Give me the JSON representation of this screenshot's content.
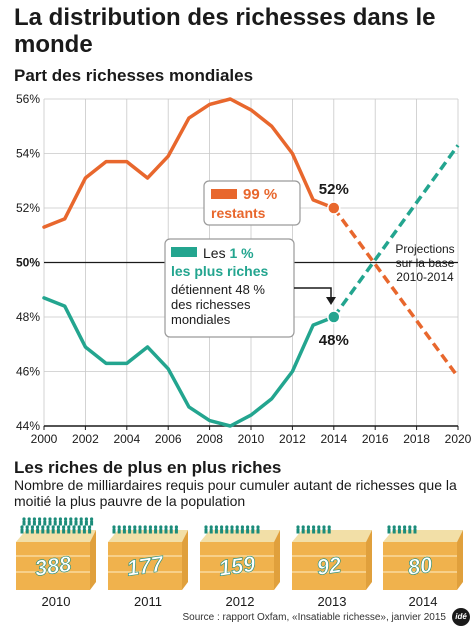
{
  "title": "La distribution des richesses dans le monde",
  "subtitle": "Part des richesses mondiales",
  "colors": {
    "orange": "#e8672d",
    "teal": "#23a58f",
    "axis": "#1a1a1a",
    "grid": "#c8c8c8",
    "cake_top": "#f2dfa7",
    "cake_side": "#f0b24d",
    "people": "#1c8c7a"
  },
  "chart_data": {
    "type": "line",
    "x_ticks": [
      2000,
      2002,
      2004,
      2006,
      2008,
      2010,
      2012,
      2014,
      2016,
      2018,
      2020
    ],
    "y_ticks": [
      "44%",
      "46%",
      "48%",
      "50%",
      "52%",
      "54%",
      "56%"
    ],
    "y_tick_values": [
      44,
      46,
      48,
      50,
      52,
      54,
      56
    ],
    "xlim": [
      2000,
      2020
    ],
    "ylim": [
      44,
      56
    ],
    "grid": true,
    "series": [
      {
        "key": "orange",
        "x": [
          2000,
          2001,
          2002,
          2003,
          2004,
          2005,
          2006,
          2007,
          2008,
          2009,
          2010,
          2011,
          2012,
          2013,
          2014
        ],
        "values": [
          51.3,
          51.6,
          53.1,
          53.7,
          53.7,
          53.1,
          53.9,
          55.3,
          55.8,
          56.0,
          55.6,
          55.0,
          54.0,
          52.3,
          52.0
        ],
        "projection": {
          "x": [
            2014,
            2020
          ],
          "values": [
            52.0,
            45.8
          ]
        }
      },
      {
        "key": "teal",
        "x": [
          2000,
          2001,
          2002,
          2003,
          2004,
          2005,
          2006,
          2007,
          2008,
          2009,
          2010,
          2011,
          2012,
          2013,
          2014
        ],
        "values": [
          48.7,
          48.4,
          46.9,
          46.3,
          46.3,
          46.9,
          46.1,
          44.7,
          44.2,
          44.0,
          44.4,
          45.0,
          46.0,
          47.7,
          48.0
        ],
        "projection": {
          "x": [
            2014,
            2020
          ],
          "values": [
            48.0,
            54.3
          ]
        }
      }
    ],
    "point_labels": [
      {
        "series": "orange",
        "x": 2014,
        "y": 52.0,
        "text": "52%"
      },
      {
        "series": "teal",
        "x": 2014,
        "y": 48.0,
        "text": "48%"
      }
    ],
    "annotations": {
      "orange_box": {
        "pct": "99 %",
        "text": "restants"
      },
      "teal_box": {
        "prefix": "Les",
        "pct": "1 %",
        "bold": "les plus riches",
        "lines": [
          "détiennent 48 %",
          "des richesses",
          "mondiales"
        ]
      },
      "projection_note": [
        "Projections",
        "sur la base",
        "2010-2014"
      ]
    }
  },
  "section2": {
    "title": "Les riches de plus en plus riches",
    "subtitle": "Nombre de milliardaires requis pour cumuler autant de richesses que la moitié la plus pauvre de la population",
    "cakes": [
      {
        "year": "2010",
        "value": "388",
        "people": 388
      },
      {
        "year": "2011",
        "value": "177",
        "people": 177
      },
      {
        "year": "2012",
        "value": "159",
        "people": 159
      },
      {
        "year": "2013",
        "value": "92",
        "people": 92
      },
      {
        "year": "2014",
        "value": "80",
        "people": 80
      }
    ]
  },
  "source": "Source : rapport Oxfam, «Insatiable richesse», janvier 2015",
  "logo": "idé"
}
